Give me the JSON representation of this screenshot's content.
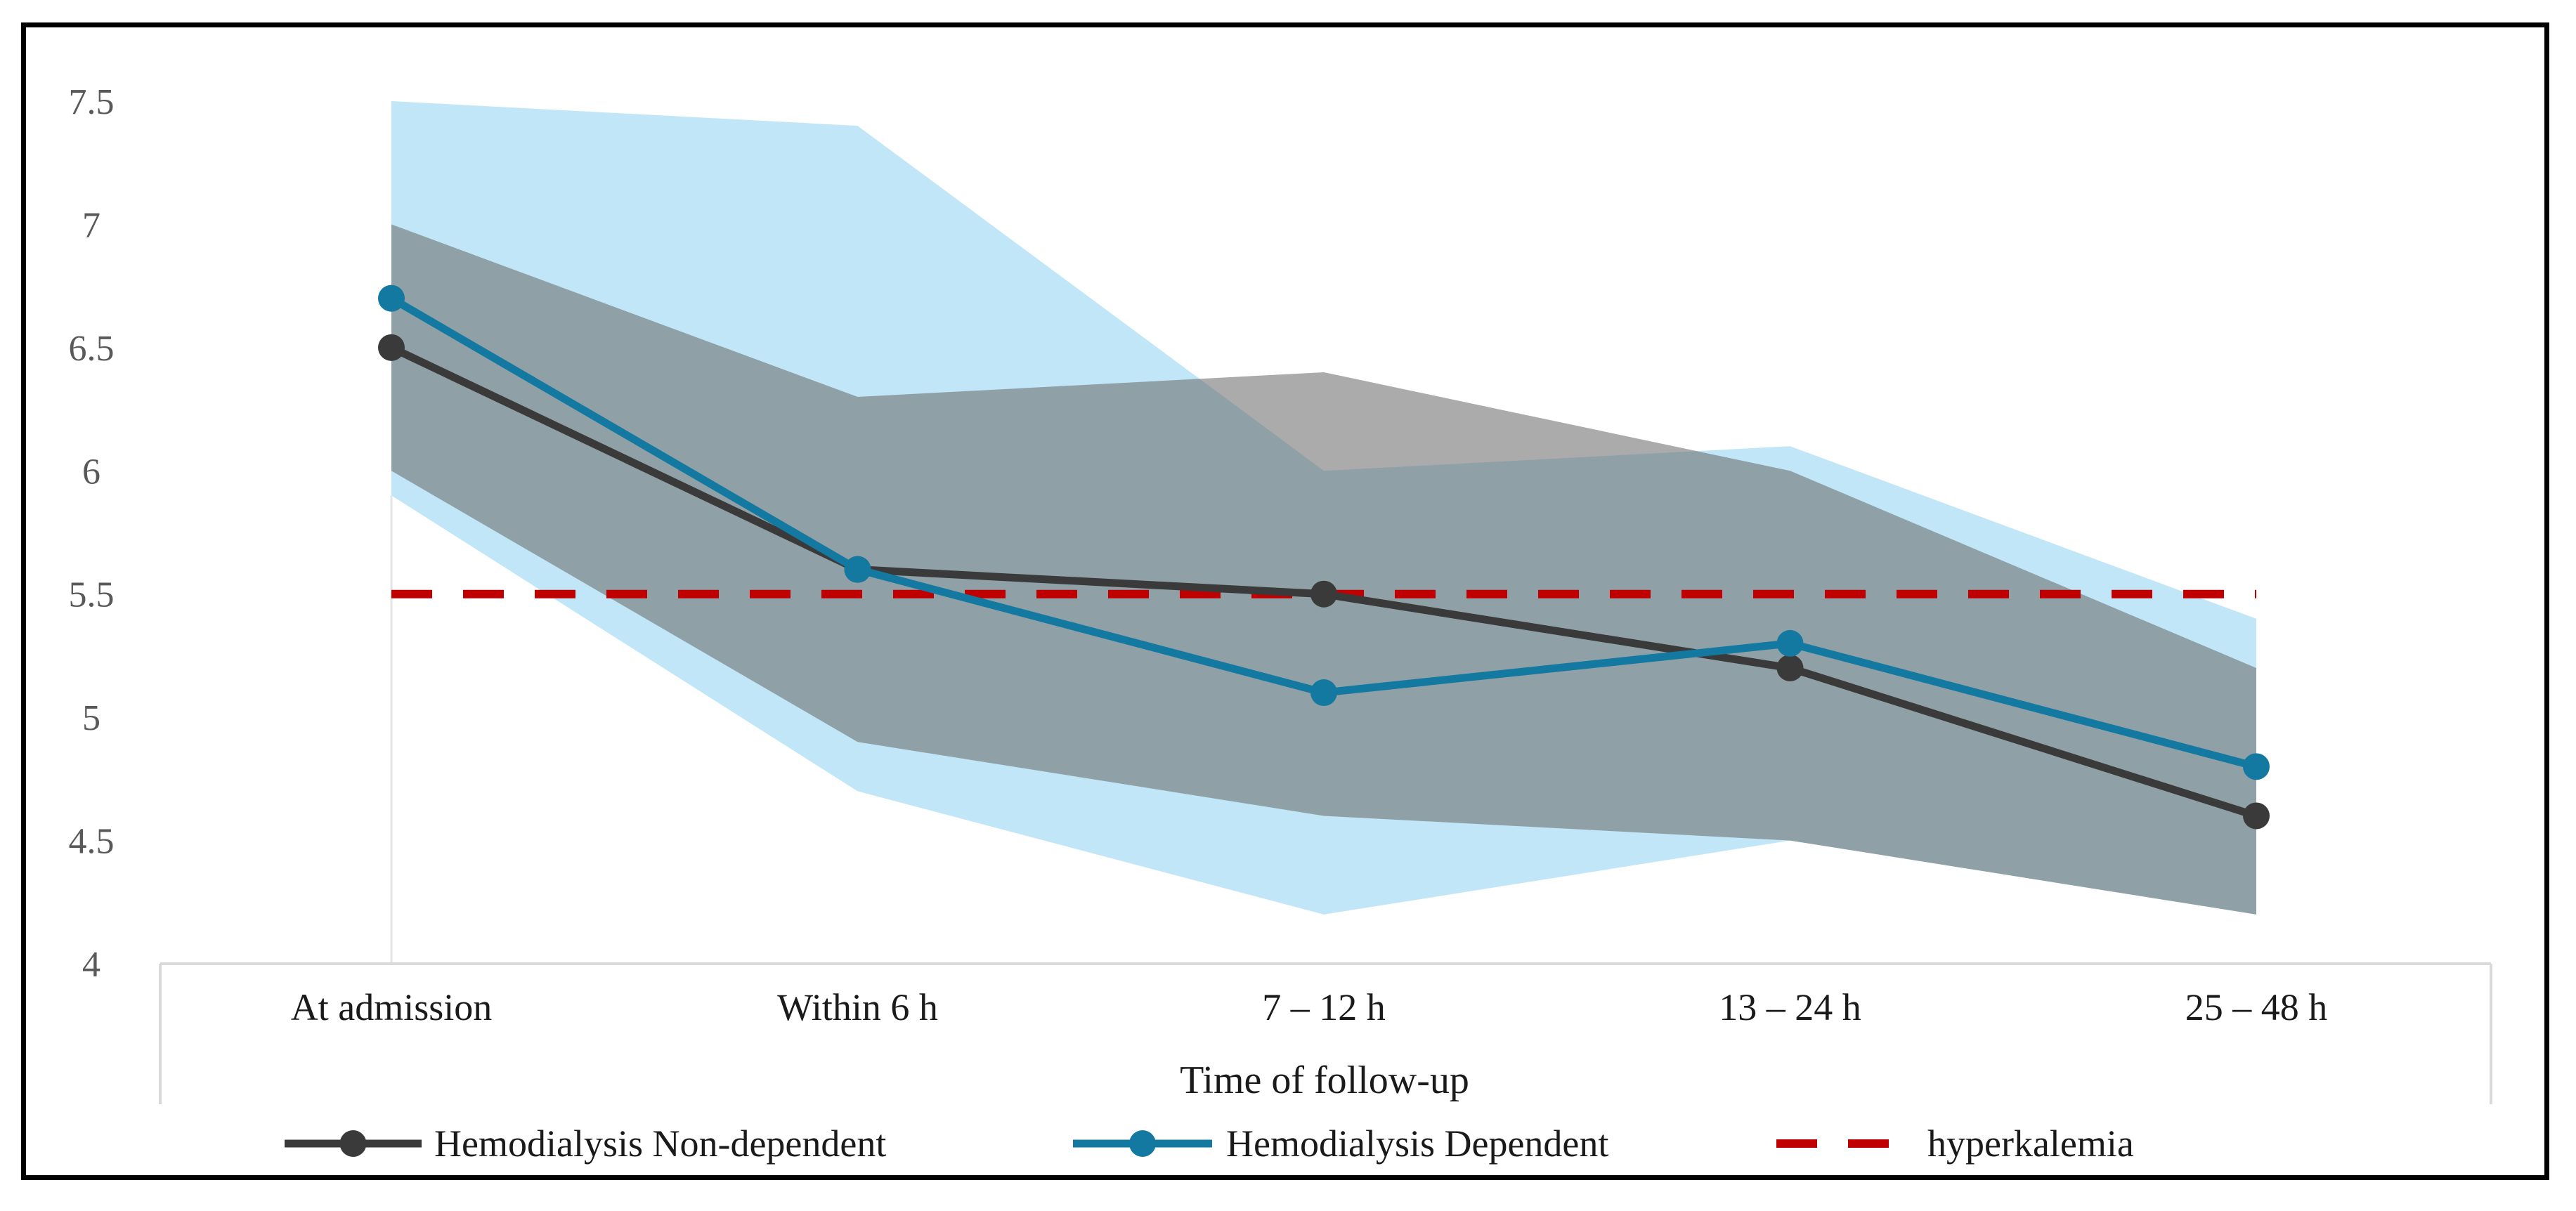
{
  "chart_data": {
    "type": "line",
    "title": "",
    "xlabel": "Time of follow-up",
    "ylabel": "",
    "ylim": [
      4,
      7.5
    ],
    "yticks": [
      4,
      4.5,
      5,
      5.5,
      6,
      6.5,
      7,
      7.5
    ],
    "ytick_labels": [
      "4",
      "4.5",
      "5",
      "5.5",
      "6",
      "6.5",
      "7",
      "7.5"
    ],
    "categories": [
      "At admission",
      "Within 6 h",
      "7 – 12 h",
      "13 – 24 h",
      "25 – 48 h"
    ],
    "bands": [
      {
        "name": "Hemodialysis Dependent range",
        "color": "#9ad6f2",
        "lower": [
          5.9,
          4.7,
          4.2,
          4.5,
          4.2
        ],
        "upper": [
          7.5,
          7.4,
          6.0,
          6.1,
          5.4
        ]
      },
      {
        "name": "Hemodialysis Non-dependent range",
        "color": "#666666",
        "lower": [
          6.0,
          4.9,
          4.6,
          4.5,
          4.2
        ],
        "upper": [
          7.0,
          6.3,
          6.4,
          6.0,
          5.2
        ]
      }
    ],
    "series": [
      {
        "name": "Hemodialysis Non-dependent",
        "color": "#3a3a3a",
        "style": "solid",
        "values": [
          6.5,
          5.6,
          5.5,
          5.2,
          4.6
        ]
      },
      {
        "name": "Hemodialysis Dependent",
        "color": "#1479a0",
        "style": "solid",
        "values": [
          6.7,
          5.6,
          5.1,
          5.3,
          4.8
        ]
      },
      {
        "name": "hyperkalemia",
        "color": "#c00000",
        "style": "dashed",
        "values": [
          5.5,
          5.5,
          5.5,
          5.5,
          5.5
        ]
      }
    ],
    "legend": [
      "Hemodialysis Non-dependent",
      "Hemodialysis Dependent",
      "hyperkalemia"
    ],
    "legend_position": "bottom",
    "grid": false
  }
}
